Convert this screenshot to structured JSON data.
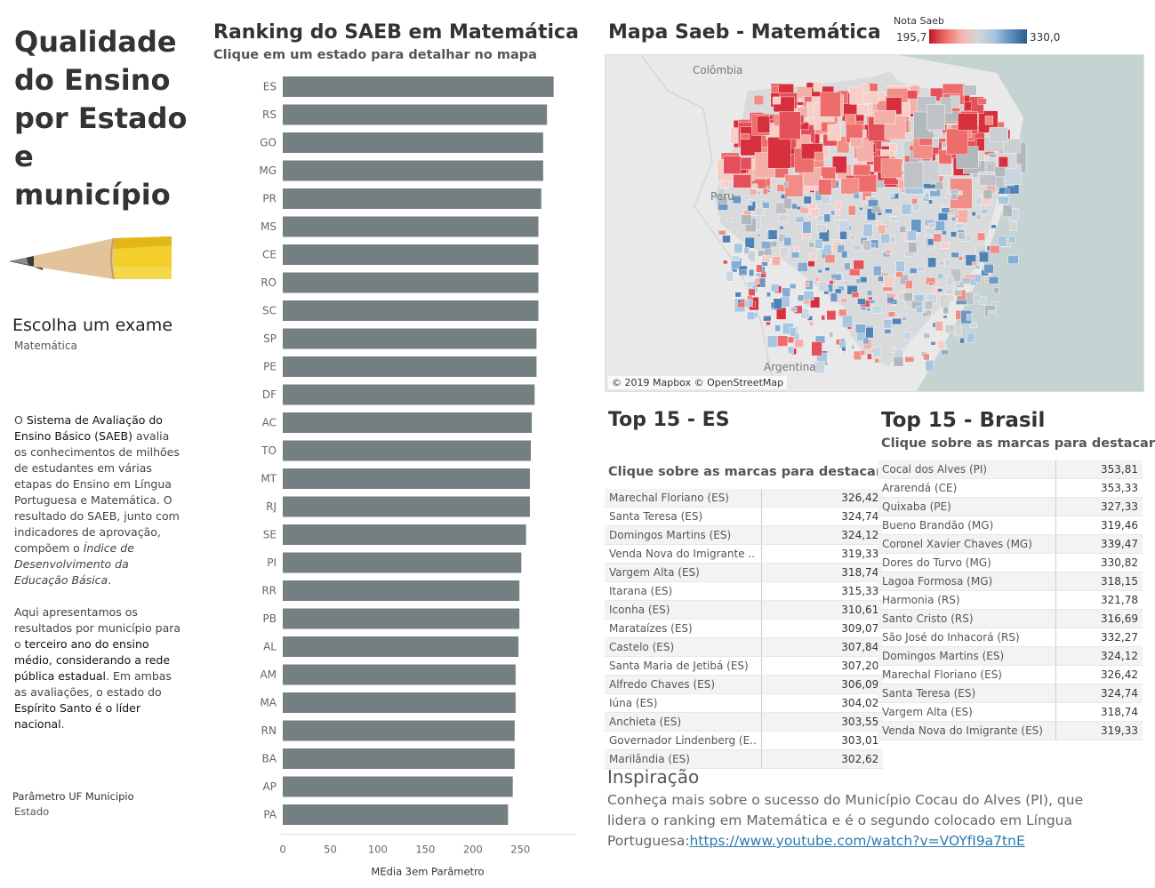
{
  "sidebar": {
    "title_lines": [
      "Qualidade",
      "do Ensino",
      "por Estado",
      "e município"
    ],
    "exam_title": "Escolha um exame",
    "exam_value": "Matemática",
    "desc_p1": [
      {
        "t": "O ",
        "s": "n"
      },
      {
        "t": "Sistema de Avaliação do Ensino Básico (SAEB)",
        "s": "b"
      },
      {
        "t": " avalia os conhecimentos de milhões de estudantes em várias etapas do Ensino em Língua Portuguesa e Matemática. O resultado do SAEB, junto com indicadores de aprovação, compõem o ",
        "s": "n"
      },
      {
        "t": "Índice de Desenvolvimento da Educação Básica",
        "s": "i"
      },
      {
        "t": ".",
        "s": "n"
      }
    ],
    "desc_p2": [
      {
        "t": "Aqui apresentamos os resultados por município para o ",
        "s": "n"
      },
      {
        "t": "terceiro ano do ensino médio, considerando a rede pública estadual",
        "s": "b"
      },
      {
        "t": ". Em ambas as avaliações, o estado do ",
        "s": "n"
      },
      {
        "t": "Espírito Santo é o líder nacional",
        "s": "b"
      },
      {
        "t": ".",
        "s": "n"
      }
    ],
    "param_label": "Parâmetro UF Municipio",
    "param_value": "Estado"
  },
  "ranking": {
    "title": "Ranking do SAEB em Matemática",
    "subtitle": "Clique em um estado para detalhar no mapa"
  },
  "chart_data": {
    "type": "bar",
    "orientation": "horizontal",
    "categories": [
      "ES",
      "RS",
      "GO",
      "MG",
      "PR",
      "MS",
      "CE",
      "RO",
      "SC",
      "SP",
      "PE",
      "DF",
      "AC",
      "TO",
      "MT",
      "RJ",
      "SE",
      "PI",
      "RR",
      "PB",
      "AL",
      "AM",
      "MA",
      "RN",
      "BA",
      "AP",
      "PA"
    ],
    "values": [
      285,
      278,
      274,
      274,
      272,
      269,
      269,
      269,
      269,
      267,
      267,
      265,
      262,
      261,
      260,
      260,
      256,
      251,
      249,
      249,
      248,
      245,
      245,
      244,
      244,
      242,
      237
    ],
    "xlabel": "MEdia 3em Parâmetro",
    "ylabel": "",
    "xlim": [
      0,
      290
    ],
    "xticks": [
      0,
      50,
      100,
      150,
      200,
      250
    ],
    "bar_color": "#737f80",
    "grid": false
  },
  "map": {
    "title": "Mapa Saeb - Matemática",
    "legend_title": "Nota Saeb",
    "legend_min": "195,7",
    "legend_max": "330,0",
    "labels": {
      "colombia": "Colômbia",
      "peru": "Peru",
      "argentina": "Argentina"
    },
    "credit": "© 2019 Mapbox © OpenStreetMap",
    "color_low": "#c0152b",
    "color_high": "#2b5c8f"
  },
  "top_es": {
    "title": "Top 15  - ES",
    "subtitle": "Clique sobre as marcas para destacar",
    "rows": [
      {
        "name": "Marechal Floriano (ES)",
        "value": "326,42"
      },
      {
        "name": "Santa Teresa (ES)",
        "value": "324,74"
      },
      {
        "name": "Domingos Martins (ES)",
        "value": "324,12"
      },
      {
        "name": "Venda Nova do Imigrante ..",
        "value": "319,33"
      },
      {
        "name": "Vargem Alta (ES)",
        "value": "318,74"
      },
      {
        "name": "Itarana (ES)",
        "value": "315,33"
      },
      {
        "name": "Iconha (ES)",
        "value": "310,61"
      },
      {
        "name": "Marataízes (ES)",
        "value": "309,07"
      },
      {
        "name": "Castelo (ES)",
        "value": "307,84"
      },
      {
        "name": "Santa Maria de Jetibá (ES)",
        "value": "307,20"
      },
      {
        "name": "Alfredo Chaves (ES)",
        "value": "306,09"
      },
      {
        "name": "Iúna (ES)",
        "value": "304,02"
      },
      {
        "name": "Anchieta (ES)",
        "value": "303,55"
      },
      {
        "name": "Governador Lindenberg (E..",
        "value": "303,01"
      },
      {
        "name": "Marilândia (ES)",
        "value": "302,62"
      }
    ]
  },
  "top_br": {
    "title": "Top 15 - Brasil",
    "subtitle": "Clique sobre as marcas para destacar",
    "rows": [
      {
        "name": "Cocal dos Alves (PI)",
        "value": "353,81"
      },
      {
        "name": "Ararendá (CE)",
        "value": "353,33"
      },
      {
        "name": "Quixaba (PE)",
        "value": "327,33"
      },
      {
        "name": "Bueno Brandão (MG)",
        "value": "319,46"
      },
      {
        "name": "Coronel Xavier Chaves (MG)",
        "value": "339,47"
      },
      {
        "name": "Dores do Turvo (MG)",
        "value": "330,82"
      },
      {
        "name": "Lagoa Formosa (MG)",
        "value": "318,15"
      },
      {
        "name": "Harmonia (RS)",
        "value": "321,78"
      },
      {
        "name": "Santo Cristo (RS)",
        "value": "316,69"
      },
      {
        "name": "São José do Inhacorá (RS)",
        "value": "332,27"
      },
      {
        "name": "Domingos Martins (ES)",
        "value": "324,12"
      },
      {
        "name": "Marechal Floriano (ES)",
        "value": "326,42"
      },
      {
        "name": "Santa Teresa (ES)",
        "value": "324,74"
      },
      {
        "name": "Vargem Alta (ES)",
        "value": "318,74"
      },
      {
        "name": "Venda Nova do Imigrante (ES)",
        "value": "319,33"
      }
    ]
  },
  "inspiration": {
    "title": "Inspiração",
    "text": "Conheça mais sobre o sucesso do Município Cocau do Alves (PI), que lidera o ranking em Matemática e é o segundo colocado em Língua Portuguesa:",
    "link": "https://www.youtube.com/watch?v=VOYfI9a7tnE"
  }
}
